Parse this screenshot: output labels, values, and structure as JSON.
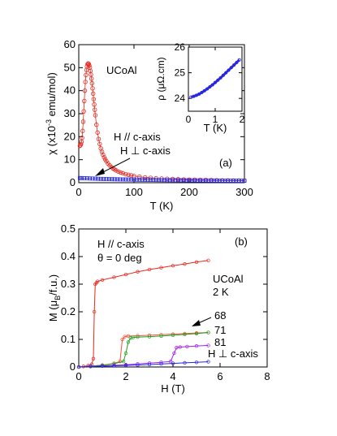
{
  "chart_data": [
    {
      "type": "scatter",
      "panel_label": "(a)",
      "sample_label": "UCoAl",
      "xlabel": "T (K)",
      "ylabel": "χ (x10",
      "ylabel_exp": "-3",
      "ylabel_unit": " emu/mol)",
      "xlim": [
        0,
        300
      ],
      "ylim": [
        0,
        60
      ],
      "xticks": [
        0,
        100,
        200,
        300
      ],
      "yticks": [
        0,
        10,
        20,
        30,
        40,
        50,
        60
      ],
      "annotations": [
        "H // c-axis",
        "H ⊥ c-axis"
      ],
      "series": [
        {
          "name": "H // c-axis",
          "color": "#e8281e",
          "marker": "open-circle",
          "x": [
            2,
            3,
            4,
            5,
            6,
            7,
            8,
            9,
            10,
            11,
            12,
            13,
            14,
            15,
            16,
            17,
            18,
            19,
            20,
            21,
            22,
            23,
            24,
            25,
            26,
            27,
            28,
            29,
            30,
            32,
            34,
            36,
            38,
            40,
            42,
            44,
            46,
            48,
            50,
            53,
            56,
            59,
            62,
            65,
            68,
            72,
            76,
            80,
            85,
            90,
            95,
            100,
            110,
            120,
            130,
            140,
            150,
            160,
            170,
            180,
            190,
            200,
            210,
            220,
            230,
            240,
            250,
            260,
            270,
            280,
            290,
            300
          ],
          "y": [
            16.0,
            16.3,
            16.8,
            17.8,
            19.5,
            22.5,
            26.5,
            31.0,
            35.5,
            40.0,
            43.8,
            46.8,
            49.0,
            50.5,
            51.5,
            51.8,
            51.6,
            51.0,
            50.0,
            48.6,
            47.0,
            45.2,
            43.2,
            41.0,
            38.7,
            36.3,
            34.0,
            31.7,
            29.3,
            25.2,
            21.8,
            19.0,
            16.8,
            14.9,
            13.4,
            12.1,
            11.0,
            10.1,
            9.3,
            8.3,
            7.5,
            6.8,
            6.2,
            5.7,
            5.3,
            4.8,
            4.4,
            4.1,
            3.7,
            3.4,
            3.2,
            2.9,
            2.6,
            2.3,
            2.1,
            1.9,
            1.8,
            1.7,
            1.6,
            1.5,
            1.4,
            1.3,
            1.25,
            1.2,
            1.15,
            1.1,
            1.05,
            1.0,
            0.98,
            0.95,
            0.92,
            0.9
          ]
        },
        {
          "name": "H ⊥ c-axis",
          "color": "#2828e0",
          "marker": "open-square",
          "x": [
            2,
            5,
            10,
            15,
            20,
            25,
            30,
            35,
            40,
            45,
            50,
            55,
            60,
            65,
            70,
            75,
            80,
            85,
            90,
            95,
            100,
            105,
            110,
            115,
            120,
            125,
            130,
            135,
            140,
            145,
            150,
            155,
            160,
            165,
            170,
            175,
            180,
            185,
            190,
            195,
            200,
            205,
            210,
            215,
            220,
            225,
            230,
            235,
            240,
            245,
            250,
            255,
            260,
            265,
            270,
            275,
            280,
            285,
            290,
            295,
            300
          ],
          "y": [
            2.0,
            2.0,
            1.95,
            1.9,
            1.85,
            1.8,
            1.75,
            1.7,
            1.65,
            1.6,
            1.58,
            1.55,
            1.52,
            1.5,
            1.48,
            1.45,
            1.43,
            1.4,
            1.38,
            1.36,
            1.34,
            1.32,
            1.3,
            1.28,
            1.26,
            1.24,
            1.22,
            1.2,
            1.18,
            1.17,
            1.15,
            1.14,
            1.12,
            1.11,
            1.1,
            1.09,
            1.08,
            1.07,
            1.06,
            1.05,
            1.04,
            1.03,
            1.02,
            1.01,
            1.0,
            0.99,
            0.98,
            0.97,
            0.96,
            0.95,
            0.94,
            0.93,
            0.92,
            0.91,
            0.9,
            0.9,
            0.89,
            0.88,
            0.87,
            0.86,
            0.85
          ]
        }
      ],
      "inset": {
        "type": "line",
        "xlabel": "T (K)",
        "ylabel": "ρ (μΩ.cm)",
        "xlim": [
          0,
          2
        ],
        "ylim": [
          23.5,
          26
        ],
        "xticks": [
          0,
          1,
          2
        ],
        "yticks": [
          24,
          25,
          26
        ],
        "series": [
          {
            "color": "#2828e0",
            "x": [
              0.1,
              0.2,
              0.3,
              0.4,
              0.5,
              0.6,
              0.7,
              0.8,
              0.9,
              1.0,
              1.1,
              1.2,
              1.3,
              1.4,
              1.5,
              1.6,
              1.7,
              1.8,
              1.9
            ],
            "y": [
              24.05,
              24.08,
              24.12,
              24.17,
              24.23,
              24.3,
              24.37,
              24.45,
              24.53,
              24.62,
              24.71,
              24.8,
              24.9,
              25.0,
              25.1,
              25.2,
              25.3,
              25.4,
              25.5
            ]
          }
        ]
      }
    },
    {
      "type": "line",
      "panel_label": "(b)",
      "sample_label": "UCoAl",
      "temperature_label": "2 K",
      "field_label": "H // c-axis",
      "angle_label": "θ = 0 deg",
      "xlabel": "H (T)",
      "ylabel": "M (μ",
      "ylabel_sub": "B",
      "ylabel_unit": "/f.u.)",
      "xlim": [
        0,
        8
      ],
      "ylim": [
        0,
        0.5
      ],
      "xticks": [
        0,
        2,
        4,
        6,
        8
      ],
      "yticks": [
        0,
        0.1,
        0.2,
        0.3,
        0.4,
        0.5
      ],
      "series": [
        {
          "name": "0",
          "color": "#e8281e",
          "x": [
            0,
            0.2,
            0.4,
            0.55,
            0.62,
            0.66,
            0.7,
            0.75,
            0.8,
            1.0,
            1.5,
            2.0,
            2.5,
            3.0,
            3.5,
            4.0,
            4.5,
            5.0,
            5.5
          ],
          "y": [
            0,
            0.002,
            0.005,
            0.01,
            0.03,
            0.2,
            0.3,
            0.305,
            0.31,
            0.315,
            0.325,
            0.335,
            0.345,
            0.353,
            0.36,
            0.367,
            0.373,
            0.38,
            0.386
          ]
        },
        {
          "name": "68",
          "color": "#f2543c",
          "x": [
            0,
            0.5,
            1.0,
            1.5,
            1.75,
            1.85,
            1.95,
            2.1,
            2.5,
            3.0,
            3.5,
            4.0,
            4.5,
            5.0,
            5.5
          ],
          "y": [
            0,
            0.003,
            0.007,
            0.013,
            0.02,
            0.1,
            0.11,
            0.112,
            0.113,
            0.115,
            0.117,
            0.119,
            0.121,
            0.123,
            0.125
          ]
        },
        {
          "name": "71",
          "color": "#1ea01e",
          "x": [
            0,
            0.5,
            1.0,
            1.5,
            1.9,
            2.0,
            2.1,
            2.2,
            2.3,
            2.5,
            3.0,
            3.5,
            4.0,
            4.5,
            5.0,
            5.5
          ],
          "y": [
            0,
            0.003,
            0.006,
            0.012,
            0.02,
            0.05,
            0.09,
            0.105,
            0.107,
            0.108,
            0.11,
            0.112,
            0.115,
            0.118,
            0.121,
            0.125
          ]
        },
        {
          "name": "81",
          "color": "#a020f0",
          "x": [
            0,
            0.5,
            1.0,
            1.5,
            2.0,
            2.5,
            3.0,
            3.5,
            3.9,
            4.05,
            4.15,
            4.3,
            4.6,
            5.0,
            5.5
          ],
          "y": [
            0,
            0.002,
            0.004,
            0.006,
            0.008,
            0.011,
            0.014,
            0.017,
            0.02,
            0.05,
            0.07,
            0.072,
            0.074,
            0.076,
            0.078
          ]
        },
        {
          "name": "H ⊥ c-axis",
          "color": "#2828e0",
          "x": [
            0,
            0.5,
            1.0,
            1.5,
            2.0,
            2.5,
            3.0,
            3.5,
            4.0,
            4.5,
            5.0,
            5.5
          ],
          "y": [
            0,
            0.002,
            0.003,
            0.004,
            0.006,
            0.007,
            0.009,
            0.011,
            0.013,
            0.015,
            0.017,
            0.019
          ]
        }
      ]
    }
  ]
}
